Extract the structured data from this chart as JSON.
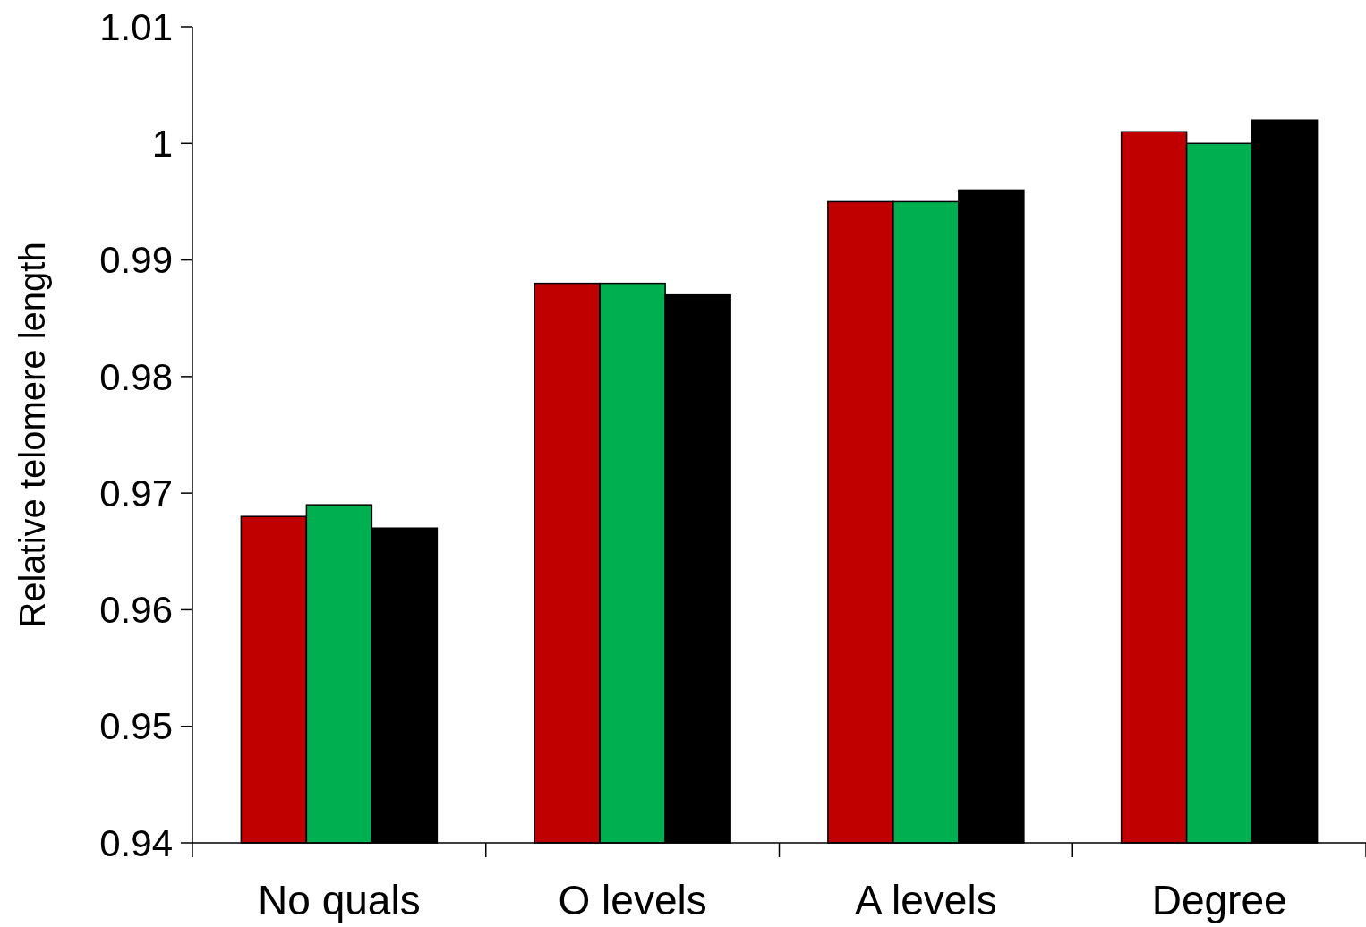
{
  "chart_data": {
    "type": "bar",
    "ylabel": "Relative telomere length",
    "categories": [
      "No quals",
      "O levels",
      "A levels",
      "Degree"
    ],
    "series": [
      {
        "color": "#c00000",
        "values": [
          0.968,
          0.988,
          0.995,
          1.001
        ]
      },
      {
        "color": "#00b050",
        "values": [
          0.969,
          0.988,
          0.995,
          1.0
        ]
      },
      {
        "color": "#000000",
        "values": [
          0.967,
          0.987,
          0.996,
          1.002
        ]
      }
    ],
    "ylim": [
      0.94,
      1.01
    ],
    "yticks": [
      0.94,
      0.95,
      0.96,
      0.97,
      0.98,
      0.99,
      1,
      1.01
    ],
    "grid": false
  }
}
